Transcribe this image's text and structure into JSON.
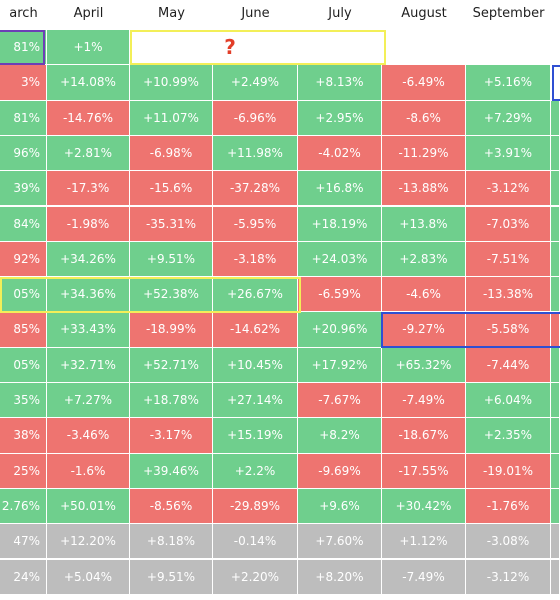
{
  "headers": [
    "arch",
    "April",
    "May",
    "June",
    "July",
    "August",
    "September",
    ""
  ],
  "question_mark": "?",
  "first_row": [
    {
      "text": "81%",
      "color": "g"
    },
    {
      "text": "+1%",
      "color": "g"
    },
    {
      "text": "",
      "color": "w"
    },
    {
      "text": "",
      "color": "w"
    },
    {
      "text": "",
      "color": "w"
    },
    {
      "text": "",
      "color": "w"
    },
    {
      "text": "",
      "color": "w"
    },
    {
      "text": "",
      "color": "w"
    }
  ],
  "rows": [
    [
      [
        "3%",
        "r"
      ],
      [
        "+14.08%",
        "g"
      ],
      [
        "+10.99%",
        "g"
      ],
      [
        "+2.49%",
        "g"
      ],
      [
        "+8.13%",
        "g"
      ],
      [
        "-6.49%",
        "r"
      ],
      [
        "+5.16%",
        "g"
      ],
      [
        "",
        "w"
      ]
    ],
    [
      [
        "81%",
        "g"
      ],
      [
        "-14.76%",
        "r"
      ],
      [
        "+11.07%",
        "g"
      ],
      [
        "-6.96%",
        "r"
      ],
      [
        "+2.95%",
        "g"
      ],
      [
        "-8.6%",
        "r"
      ],
      [
        "+7.29%",
        "g"
      ],
      [
        "",
        "g"
      ]
    ],
    [
      [
        "96%",
        "g"
      ],
      [
        "+2.81%",
        "g"
      ],
      [
        "-6.98%",
        "r"
      ],
      [
        "+11.98%",
        "g"
      ],
      [
        "-4.02%",
        "r"
      ],
      [
        "-11.29%",
        "r"
      ],
      [
        "+3.91%",
        "g"
      ],
      [
        "",
        "g"
      ]
    ],
    [
      [
        "39%",
        "g"
      ],
      [
        "-17.3%",
        "r"
      ],
      [
        "-15.6%",
        "r"
      ],
      [
        "-37.28%",
        "r"
      ],
      [
        "+16.8%",
        "g"
      ],
      [
        "-13.88%",
        "r"
      ],
      [
        "-3.12%",
        "r"
      ],
      [
        "",
        "g"
      ]
    ],
    [
      [
        "84%",
        "g"
      ],
      [
        "-1.98%",
        "r"
      ],
      [
        "-35.31%",
        "r"
      ],
      [
        "-5.95%",
        "r"
      ],
      [
        "+18.19%",
        "g"
      ],
      [
        "+13.8%",
        "g"
      ],
      [
        "-7.03%",
        "r"
      ],
      [
        "",
        "g"
      ]
    ],
    [
      [
        "92%",
        "r"
      ],
      [
        "+34.26%",
        "g"
      ],
      [
        "+9.51%",
        "g"
      ],
      [
        "-3.18%",
        "r"
      ],
      [
        "+24.03%",
        "g"
      ],
      [
        "+2.83%",
        "g"
      ],
      [
        "-7.51%",
        "r"
      ],
      [
        "",
        "g"
      ]
    ],
    [
      [
        "05%",
        "g"
      ],
      [
        "+34.36%",
        "g"
      ],
      [
        "+52.38%",
        "g"
      ],
      [
        "+26.67%",
        "g"
      ],
      [
        "-6.59%",
        "r"
      ],
      [
        "-4.6%",
        "r"
      ],
      [
        "-13.38%",
        "r"
      ],
      [
        "",
        "g"
      ]
    ],
    [
      [
        "85%",
        "r"
      ],
      [
        "+33.43%",
        "g"
      ],
      [
        "-18.99%",
        "r"
      ],
      [
        "-14.62%",
        "r"
      ],
      [
        "+20.96%",
        "g"
      ],
      [
        "-9.27%",
        "r"
      ],
      [
        "-5.58%",
        "r"
      ],
      [
        "",
        "r"
      ]
    ],
    [
      [
        "05%",
        "g"
      ],
      [
        "+32.71%",
        "g"
      ],
      [
        "+52.71%",
        "g"
      ],
      [
        "+10.45%",
        "g"
      ],
      [
        "+17.92%",
        "g"
      ],
      [
        "+65.32%",
        "g"
      ],
      [
        "-7.44%",
        "r"
      ],
      [
        "",
        "g"
      ]
    ],
    [
      [
        "35%",
        "g"
      ],
      [
        "+7.27%",
        "g"
      ],
      [
        "+18.78%",
        "g"
      ],
      [
        "+27.14%",
        "g"
      ],
      [
        "-7.67%",
        "r"
      ],
      [
        "-7.49%",
        "r"
      ],
      [
        "+6.04%",
        "g"
      ],
      [
        "",
        "g"
      ]
    ],
    [
      [
        "38%",
        "r"
      ],
      [
        "-3.46%",
        "r"
      ],
      [
        "-3.17%",
        "r"
      ],
      [
        "+15.19%",
        "g"
      ],
      [
        "+8.2%",
        "g"
      ],
      [
        "-18.67%",
        "r"
      ],
      [
        "+2.35%",
        "g"
      ],
      [
        "",
        "g"
      ]
    ],
    [
      [
        "25%",
        "r"
      ],
      [
        "-1.6%",
        "r"
      ],
      [
        "+39.46%",
        "g"
      ],
      [
        "+2.2%",
        "g"
      ],
      [
        "-9.69%",
        "r"
      ],
      [
        "-17.55%",
        "r"
      ],
      [
        "-19.01%",
        "r"
      ],
      [
        "",
        "g"
      ]
    ],
    [
      [
        "2.76%",
        "g"
      ],
      [
        "+50.01%",
        "g"
      ],
      [
        "-8.56%",
        "r"
      ],
      [
        "-29.89%",
        "r"
      ],
      [
        "+9.6%",
        "g"
      ],
      [
        "+30.42%",
        "g"
      ],
      [
        "-1.76%",
        "r"
      ],
      [
        "",
        "g"
      ]
    ],
    [
      [
        "47%",
        "s"
      ],
      [
        "+12.20%",
        "s"
      ],
      [
        "+8.18%",
        "s"
      ],
      [
        "-0.14%",
        "s"
      ],
      [
        "+7.60%",
        "s"
      ],
      [
        "+1.12%",
        "s"
      ],
      [
        "-3.08%",
        "s"
      ],
      [
        "",
        "s"
      ]
    ],
    [
      [
        "24%",
        "s"
      ],
      [
        "+5.04%",
        "s"
      ],
      [
        "+9.51%",
        "s"
      ],
      [
        "+2.20%",
        "s"
      ],
      [
        "+8.20%",
        "s"
      ],
      [
        "-7.49%",
        "s"
      ],
      [
        "-3.12%",
        "s"
      ],
      [
        "",
        "s"
      ]
    ]
  ]
}
